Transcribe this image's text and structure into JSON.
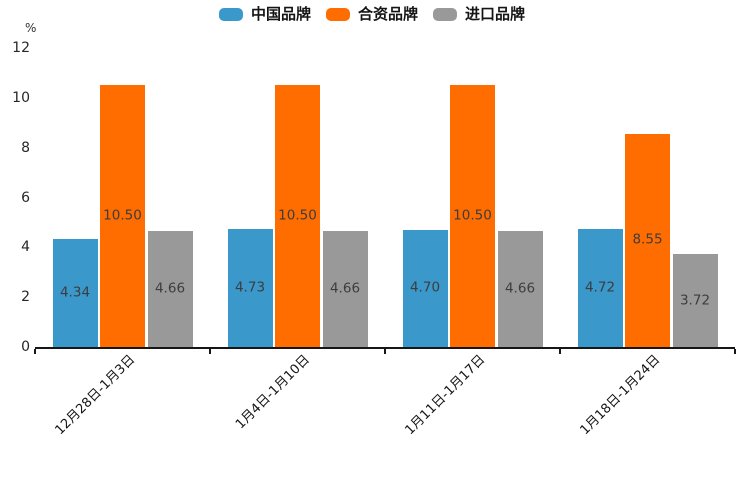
{
  "chart_data": {
    "type": "bar",
    "title": "",
    "ylabel": "%",
    "categories": [
      "12月28日-1月3日",
      "1月4日-1月10日",
      "1月11日-1月17日",
      "1月18日-1月24日"
    ],
    "series": [
      {
        "name": "中国品牌",
        "color": "#3A98CB",
        "values": [
          4.34,
          4.73,
          4.7,
          4.72
        ]
      },
      {
        "name": "合资品牌",
        "color": "#FF6C00",
        "values": [
          10.5,
          10.5,
          10.5,
          8.55
        ]
      },
      {
        "name": "进口品牌",
        "color": "#999999",
        "values": [
          4.66,
          4.66,
          4.66,
          3.72
        ]
      }
    ],
    "ylim": [
      0,
      12
    ],
    "yticks": [
      0,
      2,
      4,
      6,
      8,
      10,
      12
    ],
    "legend_position": "top",
    "grid": false,
    "value_labels": "inside-center",
    "value_label_format": "2-decimals",
    "x_label_rotation_deg": 45
  },
  "colors": {
    "background": "#ffffff",
    "axis": "#161616",
    "value_label_text": "#3d3d3d",
    "tick_label_text": "#262626"
  }
}
